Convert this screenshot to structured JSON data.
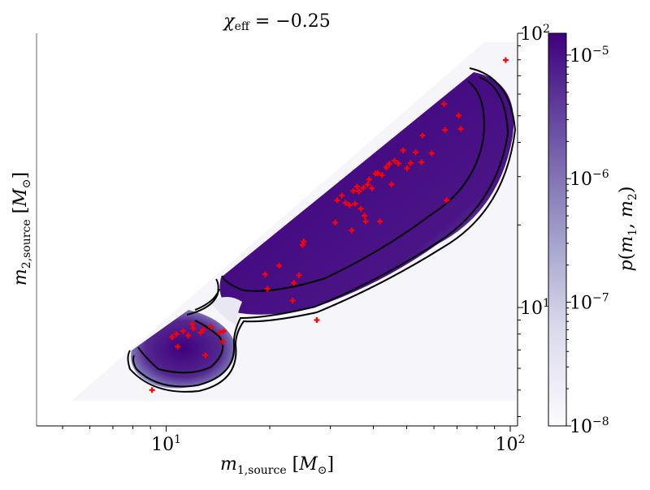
{
  "chart_data": {
    "type": "heatmap",
    "title": "χ_eff = −0.25",
    "xlabel": "m_1,source [M_⊙]",
    "ylabel": "m_2,source [M_⊙]",
    "xscale": "log",
    "yscale": "log",
    "xlim": [
      4.2,
      105
    ],
    "ylim": [
      3.7,
      100
    ],
    "x_ticks": [
      10,
      100
    ],
    "x_tick_labels": [
      "10^1",
      "10^2"
    ],
    "y_ticks": [
      10,
      100
    ],
    "y_tick_labels": [
      "10^1",
      "10^2"
    ],
    "y_axis_side": "right",
    "colorbar": {
      "label": "p(m_1, m_2)",
      "scale": "log",
      "range": [
        1e-08,
        1.5e-05
      ],
      "ticks": [
        1e-08,
        1e-07,
        1e-06,
        1e-05
      ],
      "tick_labels": [
        "10^-8",
        "10^-7",
        "10^-6",
        "10^-5"
      ],
      "colormap": [
        "#fcfbfd",
        "#dadaeb",
        "#9e9ac8",
        "#6a51a3",
        "#3f007d"
      ]
    },
    "regions": [
      {
        "name": "low-mass lobe",
        "peak_density": 1.2e-05
      },
      {
        "name": "high-mass band",
        "peak_density": 1.5e-05
      }
    ],
    "contour_color": "#000000",
    "points_color": "#ff0000",
    "points": [
      [
        9.1,
        5.0
      ],
      [
        10.4,
        7.8
      ],
      [
        10.7,
        8.0
      ],
      [
        10.8,
        7.2
      ],
      [
        11.2,
        8.2
      ],
      [
        11.6,
        7.9
      ],
      [
        11.9,
        8.7
      ],
      [
        12.0,
        8.4
      ],
      [
        12.6,
        8.1
      ],
      [
        12.8,
        8.3
      ],
      [
        13.5,
        8.5
      ],
      [
        14.3,
        8.1
      ],
      [
        14.6,
        7.5
      ],
      [
        14.7,
        8.2
      ],
      [
        13.0,
        6.7
      ],
      [
        19.4,
        13.2
      ],
      [
        19.7,
        11.7
      ],
      [
        21.3,
        14.2
      ],
      [
        23.3,
        10.6
      ],
      [
        23.5,
        12.3
      ],
      [
        24.3,
        13.1
      ],
      [
        24.9,
        16.9
      ],
      [
        25.1,
        17.4
      ],
      [
        27.4,
        9.0
      ],
      [
        31.0,
        20.4
      ],
      [
        31.4,
        24.6
      ],
      [
        32.4,
        25.6
      ],
      [
        33.2,
        24.1
      ],
      [
        34.1,
        23.6
      ],
      [
        34.6,
        19.1
      ],
      [
        35.0,
        26.6
      ],
      [
        35.4,
        23.9
      ],
      [
        35.9,
        27.6
      ],
      [
        36.3,
        26.5
      ],
      [
        36.8,
        22.9
      ],
      [
        37.4,
        27.3
      ],
      [
        37.7,
        21.6
      ],
      [
        38.0,
        20.6
      ],
      [
        38.5,
        28.1
      ],
      [
        38.9,
        29.3
      ],
      [
        39.6,
        27.2
      ],
      [
        40.6,
        30.8
      ],
      [
        41.2,
        30.9
      ],
      [
        41.8,
        20.6
      ],
      [
        42.4,
        30.4
      ],
      [
        43.6,
        32.4
      ],
      [
        44.5,
        33.4
      ],
      [
        45.2,
        28.1
      ],
      [
        46.1,
        34.3
      ],
      [
        47.3,
        33.5
      ],
      [
        48.8,
        37.4
      ],
      [
        50.1,
        32.2
      ],
      [
        51.3,
        33.6
      ],
      [
        53.1,
        36.8
      ],
      [
        55.2,
        33.9
      ],
      [
        55.6,
        42.4
      ],
      [
        59.1,
        36.5
      ],
      [
        64.2,
        55.2
      ],
      [
        64.6,
        44.4
      ],
      [
        65.3,
        24.6
      ],
      [
        70.8,
        50.1
      ],
      [
        71.8,
        44.8
      ],
      [
        97.0,
        79.8
      ]
    ]
  }
}
